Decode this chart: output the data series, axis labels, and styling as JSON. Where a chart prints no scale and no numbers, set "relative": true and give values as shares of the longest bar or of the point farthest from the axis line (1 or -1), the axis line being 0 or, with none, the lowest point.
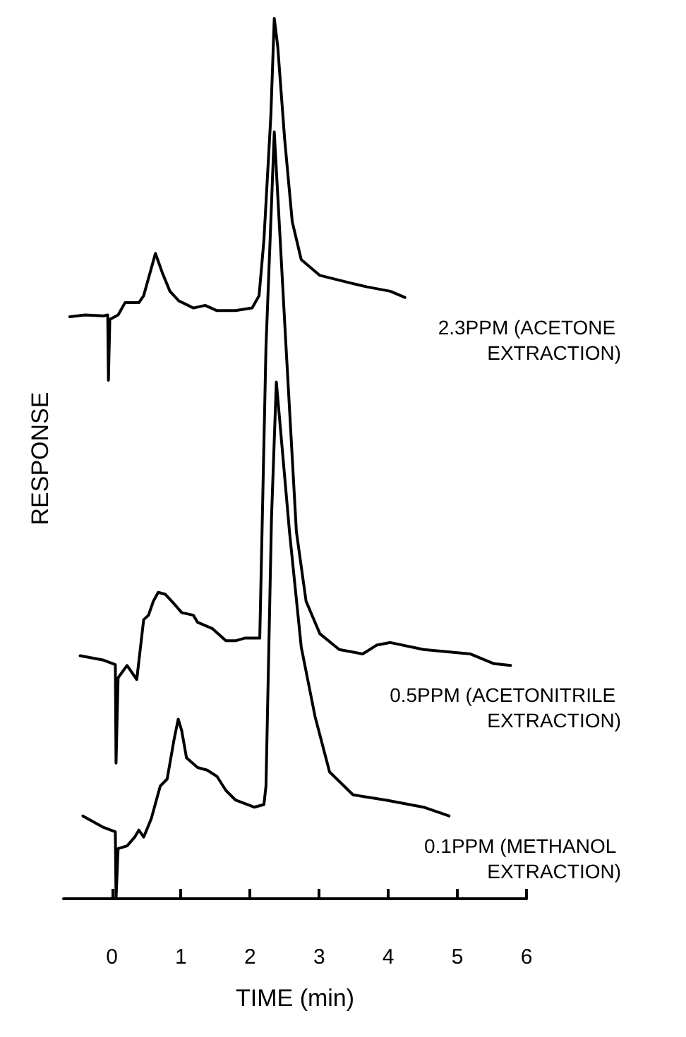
{
  "chart_data": {
    "type": "line",
    "relative": true,
    "xlabel": "TIME (min)",
    "ylabel": "RESPONSE",
    "xlim": [
      -0.7,
      6
    ],
    "xticks": [
      0,
      1,
      2,
      3,
      4,
      5,
      6
    ],
    "grid": false,
    "legend": false,
    "marker": "none",
    "line_style": "solid",
    "tick_labels": "x",
    "series": [
      {
        "name": "2.3PPM (ACETONE EXTRACTION)",
        "color": "#000000",
        "x": [
          -0.61,
          -0.39,
          -0.12,
          -0.06,
          -0.05,
          -0.03,
          0.09,
          0.19,
          0.39,
          0.46,
          0.63,
          0.73,
          0.84,
          0.97,
          1.18,
          1.35,
          1.52,
          1.79,
          2.03,
          2.13,
          2.2,
          2.3,
          2.35,
          2.4,
          2.5,
          2.61,
          2.74,
          3.01,
          3.42,
          3.69,
          4.03,
          4.24
        ],
        "values": [
          0.661,
          0.663,
          0.662,
          0.663,
          0.589,
          0.658,
          0.663,
          0.677,
          0.677,
          0.685,
          0.733,
          0.711,
          0.69,
          0.679,
          0.671,
          0.674,
          0.668,
          0.668,
          0.671,
          0.685,
          0.748,
          0.889,
          1,
          0.968,
          0.863,
          0.769,
          0.726,
          0.708,
          0.7,
          0.695,
          0.69,
          0.683
        ]
      },
      {
        "name": "0.5PPM (ACETONITRILE EXTRACTION)",
        "color": "#000000",
        "x": [
          -0.46,
          -0.12,
          0.05,
          0.06,
          0.09,
          0.22,
          0.36,
          0.46,
          0.53,
          0.6,
          0.67,
          0.77,
          0.9,
          1.01,
          1.18,
          1.24,
          1.45,
          1.65,
          1.79,
          1.92,
          2.14,
          2.23,
          2.35,
          2.52,
          2.67,
          2.81,
          3.01,
          3.29,
          3.63,
          3.83,
          4.03,
          4.51,
          5.19,
          5.53,
          5.77
        ],
        "values": [
          0.276,
          0.271,
          0.266,
          0.154,
          0.251,
          0.265,
          0.249,
          0.317,
          0.322,
          0.338,
          0.348,
          0.346,
          0.335,
          0.325,
          0.322,
          0.314,
          0.307,
          0.293,
          0.293,
          0.296,
          0.296,
          0.627,
          0.871,
          0.627,
          0.417,
          0.338,
          0.301,
          0.283,
          0.278,
          0.288,
          0.291,
          0.283,
          0.278,
          0.267,
          0.265
        ]
      },
      {
        "name": "0.1PPM (METHANOL EXTRACTION)",
        "color": "#000000",
        "x": [
          -0.42,
          -0.12,
          0.05,
          0.06,
          0.09,
          0.22,
          0.33,
          0.39,
          0.46,
          0.57,
          0.7,
          0.8,
          0.9,
          0.96,
          1.01,
          1.08,
          1.24,
          1.38,
          1.52,
          1.65,
          1.79,
          2.06,
          2.2,
          2.23,
          2.31,
          2.38,
          2.57,
          2.74,
          2.94,
          3.15,
          3.49,
          3.97,
          4.51,
          4.88
        ],
        "values": [
          0.094,
          0.081,
          0.076,
          0,
          0.057,
          0.06,
          0.07,
          0.078,
          0.07,
          0.091,
          0.128,
          0.136,
          0.181,
          0.204,
          0.191,
          0.16,
          0.149,
          0.146,
          0.139,
          0.123,
          0.112,
          0.104,
          0.107,
          0.128,
          0.433,
          0.587,
          0.417,
          0.286,
          0.207,
          0.144,
          0.118,
          0.112,
          0.104,
          0.094
        ]
      }
    ]
  }
}
